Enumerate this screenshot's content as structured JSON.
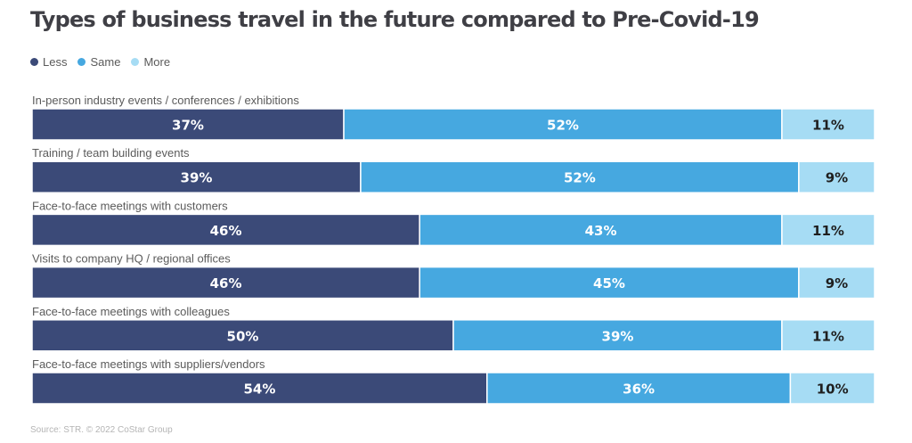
{
  "title": "Types of business travel in the future compared to Pre-Covid-19",
  "source": "Source: STR. © 2022 CoStar Group",
  "colors": {
    "less": "#3b4a78",
    "same": "#46a8e0",
    "more": "#a6dcf4",
    "label_on_dark": "#ffffff",
    "label_on_light": "#1f1f1f"
  },
  "chart_data": {
    "type": "bar",
    "orientation": "horizontal",
    "stacked": true,
    "title": "Types of business travel in the future compared to Pre-Covid-19",
    "xlabel": "",
    "ylabel": "",
    "xlim": [
      0,
      100
    ],
    "grid": false,
    "legend_position": "top-left",
    "categories": [
      "In-person industry events / conferences / exhibitions",
      "Training / team building events",
      "Face-to-face meetings with customers",
      "Visits to company HQ / regional offices",
      "Face-to-face meetings with colleagues",
      "Face-to-face meetings with suppliers/vendors"
    ],
    "series": [
      {
        "name": "Less",
        "values": [
          37,
          39,
          46,
          46,
          50,
          54
        ],
        "labels": [
          "37%",
          "39%",
          "46%",
          "46%",
          "50%",
          "54%"
        ]
      },
      {
        "name": "Same",
        "values": [
          52,
          52,
          43,
          45,
          39,
          36
        ],
        "labels": [
          "52%",
          "52%",
          "43%",
          "45%",
          "39%",
          "36%"
        ]
      },
      {
        "name": "More",
        "values": [
          11,
          9,
          11,
          9,
          11,
          10
        ],
        "labels": [
          "11%",
          "9%",
          "11%",
          "9%",
          "11%",
          "10%"
        ]
      }
    ]
  }
}
